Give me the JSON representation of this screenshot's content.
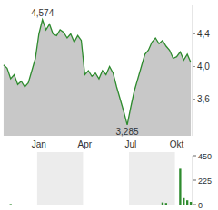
{
  "chart_data": [
    {
      "type": "line",
      "color": "#2e8b2e",
      "grid": false,
      "categories": [
        null,
        null,
        null,
        null,
        null,
        null,
        null,
        null,
        null,
        null,
        "Jan",
        null,
        null,
        null,
        null,
        null,
        null,
        null,
        null,
        null,
        null,
        null,
        null,
        "Apr",
        null,
        null,
        null,
        null,
        null,
        null,
        null,
        null,
        null,
        null,
        null,
        null,
        "Jul",
        null,
        null,
        null,
        null,
        null,
        null,
        null,
        null,
        null,
        null,
        null,
        null,
        "Okt",
        null,
        null,
        null,
        null
      ],
      "values": [
        4.02,
        3.98,
        3.85,
        3.9,
        3.78,
        3.82,
        3.75,
        3.8,
        3.95,
        4.1,
        4.4,
        4.574,
        4.45,
        4.52,
        4.4,
        4.38,
        4.45,
        4.42,
        4.35,
        4.4,
        4.3,
        4.38,
        4.32,
        3.9,
        3.95,
        3.88,
        3.92,
        3.85,
        3.95,
        3.9,
        4.0,
        3.92,
        3.75,
        3.6,
        3.45,
        3.285,
        3.5,
        3.7,
        3.85,
        4.0,
        4.15,
        4.2,
        4.3,
        4.35,
        4.28,
        4.32,
        4.25,
        4.2,
        4.1,
        4.12,
        4.18,
        4.08,
        4.15,
        4.05
      ],
      "ylim": [
        3.15,
        4.75
      ],
      "yticks": [
        {
          "value": 3.6,
          "label": "3,6"
        },
        {
          "value": 4.0,
          "label": "4,0"
        },
        {
          "value": 4.4,
          "label": "4,4"
        }
      ],
      "annotations": [
        {
          "text": "4,574",
          "value": 4.574
        },
        {
          "text": "3,285",
          "value": 3.285
        }
      ]
    },
    {
      "type": "bar",
      "color": "#2e8b2e",
      "grid": false,
      "tick_labels": "y",
      "values": [
        0,
        0,
        5,
        0,
        0,
        0,
        0,
        0,
        0,
        0,
        0,
        0,
        0,
        0,
        0,
        0,
        0,
        0,
        0,
        0,
        0,
        0,
        0,
        0,
        0,
        0,
        0,
        0,
        0,
        0,
        0,
        0,
        0,
        0,
        0,
        0,
        0,
        0,
        0,
        0,
        0,
        0,
        0,
        0,
        0,
        20,
        15,
        0,
        0,
        0,
        330,
        60,
        40,
        25
      ],
      "ylim": [
        0,
        450
      ],
      "yticks": [
        0,
        225,
        450
      ]
    }
  ]
}
